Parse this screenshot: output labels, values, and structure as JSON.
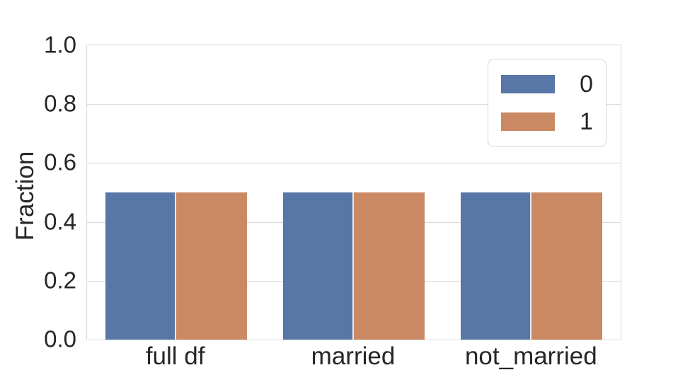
{
  "chart_data": {
    "type": "bar",
    "title": "",
    "xlabel": "",
    "ylabel": "Fraction",
    "categories": [
      "full df",
      "married",
      "not_married"
    ],
    "series": [
      {
        "name": "0",
        "color": "#5876a6",
        "values": [
          0.5,
          0.5,
          0.5
        ]
      },
      {
        "name": "1",
        "color": "#ca8962",
        "values": [
          0.5,
          0.5,
          0.5
        ]
      }
    ],
    "ylim": [
      0.0,
      1.0
    ],
    "yticks": [
      0.0,
      0.2,
      0.4,
      0.6,
      0.8,
      1.0
    ],
    "ytick_labels": [
      "0.0",
      "0.2",
      "0.4",
      "0.6",
      "0.8",
      "1.0"
    ],
    "grid": "horizontal gridlines on",
    "legend_position": "upper right"
  },
  "style": {
    "background": "#ffffff",
    "grid_color": "#d9d9d9",
    "spine_color": "#d9d9d9",
    "text_color": "#262626",
    "legend_border_color": "#d8d8d8"
  }
}
